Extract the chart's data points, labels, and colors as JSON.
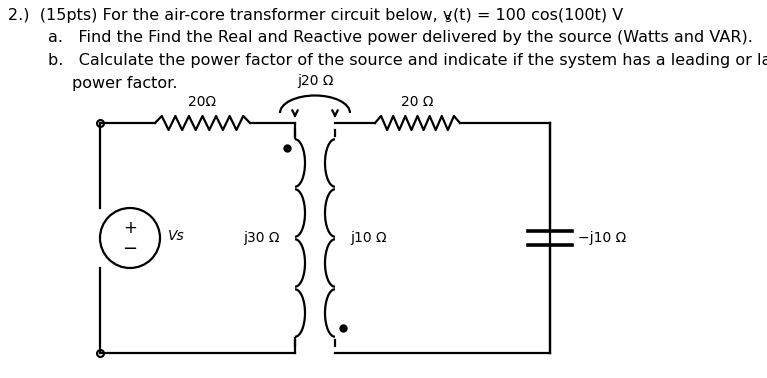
{
  "bg_color": "#ffffff",
  "text_color": "#000000",
  "line1_prefix": "2.)  (15pts) For the air-core transformer circuit below, v",
  "line1_sub": "s",
  "line1_suffix": "(t) = 100 cos(100t) V",
  "line_a": "a.   Find the Find the Real and Reactive power delivered by the source (Watts and VAR).",
  "line_b1": "b.   Calculate the power factor of the source and indicate if the system has a leading or lagging",
  "line_b2": "      power factor.",
  "fs_main": 11.5,
  "fs_sub": 9.0,
  "fs_circ": 10.0
}
